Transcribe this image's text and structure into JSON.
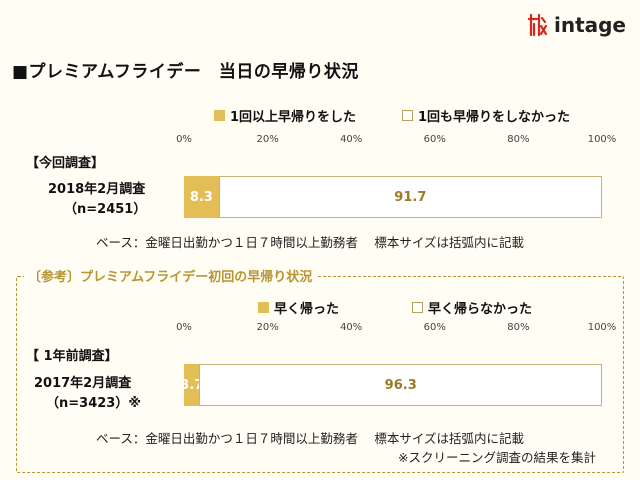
{
  "logo": {
    "text": "intage",
    "brand_color": "#d9261c"
  },
  "title": "■プレミアムフライデー　当日の早帰り状況",
  "current": {
    "legend": [
      "1回以上早帰りをした",
      "1回も早帰りをしなかった"
    ],
    "section_label": "【今回調査】",
    "row_label_line1": "2018年2月調査",
    "row_label_line2": "（n=2451）",
    "note": "ベース：金曜日出勤かつ１日７時間以上勤務者　 標本サイズは括弧内に記載"
  },
  "reference": {
    "title": "〔参考〕プレミアムフライデー初回の早帰り状況",
    "legend": [
      "早く帰った",
      "早く帰らなかった"
    ],
    "section_label": "【 1年前調査】",
    "row_label_line1": "2017年2月調査",
    "row_label_line2": "（n=3423）※",
    "note1": "ベース：金曜日出勤かつ１日７時間以上勤務者　 標本サイズは括弧内に記載",
    "note2": "※スクリーニング調査の結果を集計"
  },
  "ticks": [
    "0%",
    "20%",
    "40%",
    "60%",
    "80%",
    "100%"
  ],
  "colors": {
    "early": "#e3bd55",
    "not_early": "#ffffff",
    "accent": "#b79534"
  },
  "chart_data": [
    {
      "type": "bar",
      "stacked": true,
      "orientation": "horizontal",
      "categories": [
        "2018年2月調査（n=2451）"
      ],
      "series": [
        {
          "name": "1回以上早帰りをした",
          "values": [
            8.3
          ]
        },
        {
          "name": "1回も早帰りをしなかった",
          "values": [
            91.7
          ]
        }
      ],
      "xlim": [
        0,
        100
      ]
    },
    {
      "type": "bar",
      "stacked": true,
      "orientation": "horizontal",
      "categories": [
        "2017年2月調査（n=3423）※"
      ],
      "series": [
        {
          "name": "早く帰った",
          "values": [
            3.7
          ]
        },
        {
          "name": "早く帰らなかった",
          "values": [
            96.3
          ]
        }
      ],
      "xlim": [
        0,
        100
      ]
    }
  ]
}
